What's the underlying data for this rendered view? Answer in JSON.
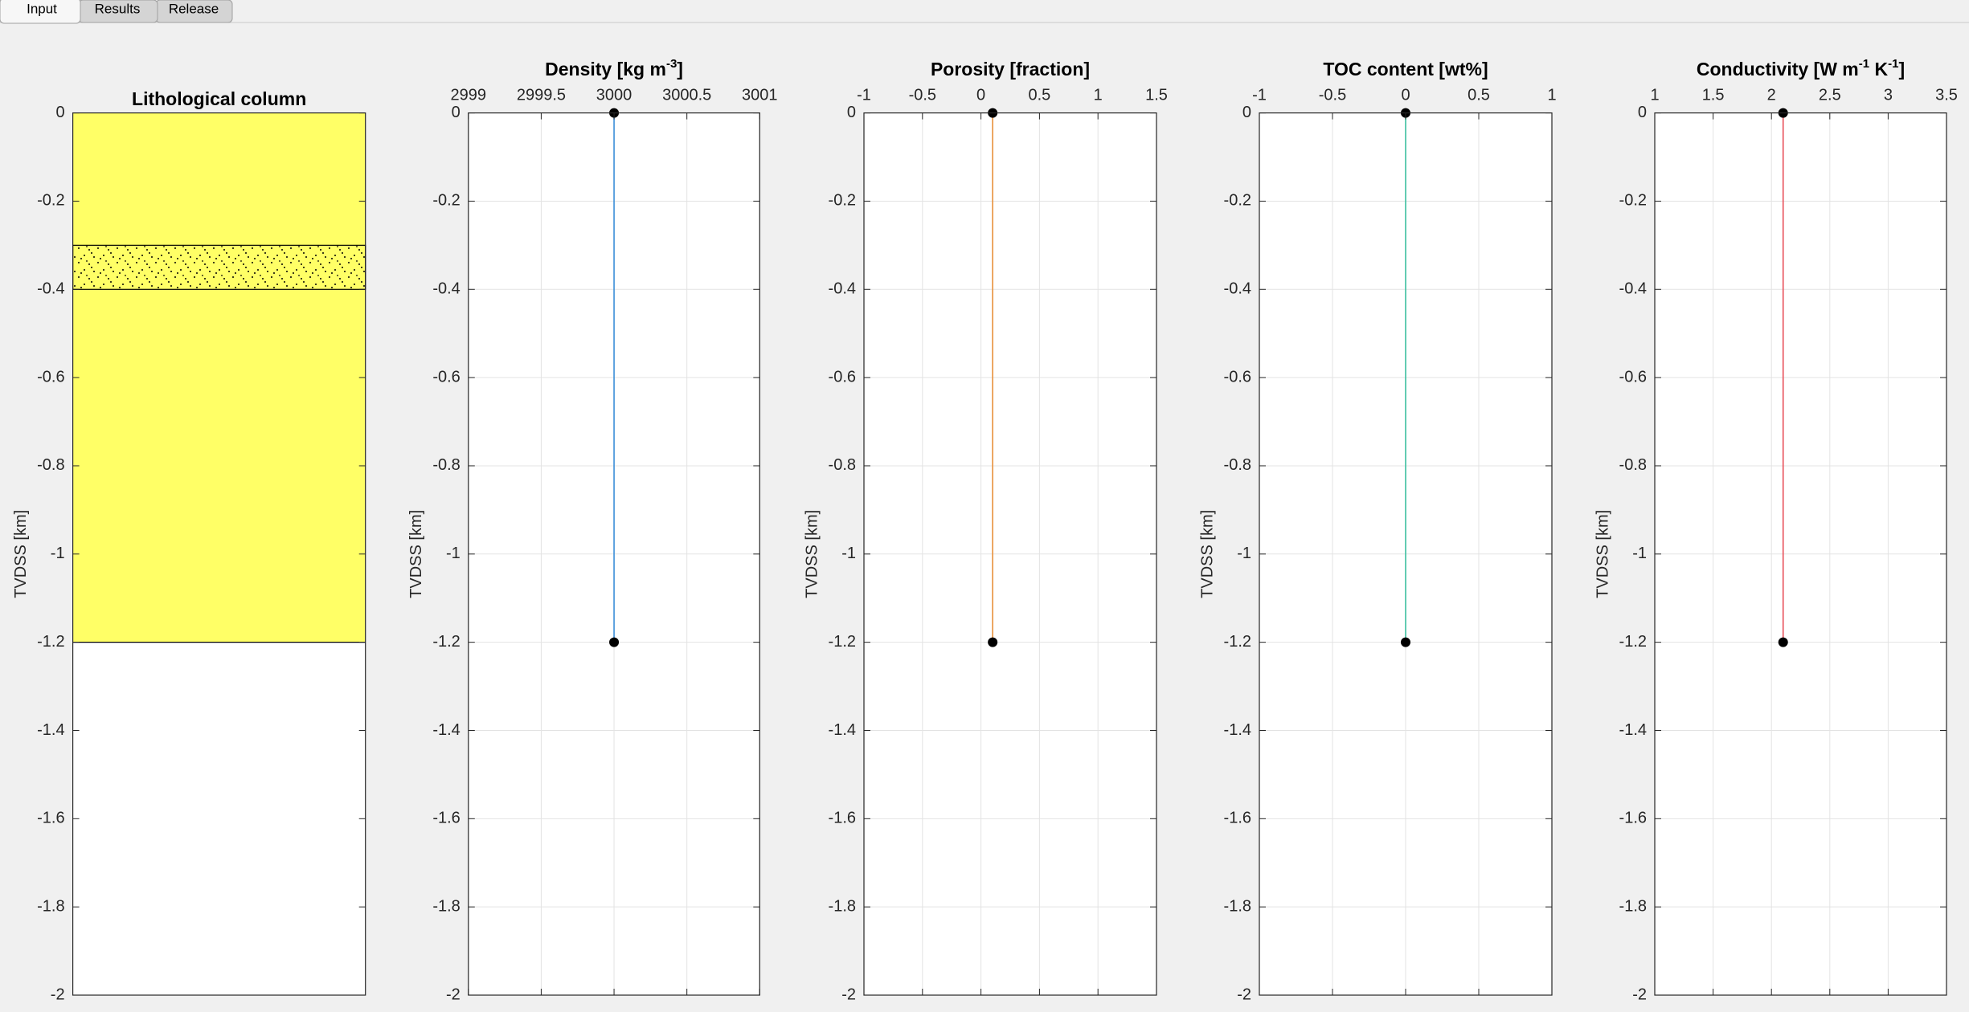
{
  "tabs": [
    "Input",
    "Results",
    "Release"
  ],
  "chart_data": [
    {
      "type": "strip",
      "title": [
        {
          "text": "Lithological column"
        }
      ],
      "ylabel": "TVDSS [km]",
      "ylim": [
        -2,
        0
      ],
      "yticks": [
        0,
        -0.2,
        -0.4,
        -0.6,
        -0.8,
        -1,
        -1.2,
        -1.4,
        -1.6,
        -1.8,
        -2
      ],
      "grid": false,
      "layers": [
        {
          "top": 0,
          "bottom": -1.2,
          "color": "#ffff66"
        },
        {
          "top": -0.3,
          "bottom": -0.4,
          "color": "#ffff66",
          "pattern": "sand"
        }
      ]
    },
    {
      "type": "line",
      "title": [
        {
          "text": "Density [kg m"
        },
        {
          "text": "-3",
          "sup": true
        },
        {
          "text": "]"
        }
      ],
      "ylabel": "TVDSS [km]",
      "xlim": [
        2999,
        3001
      ],
      "xticks": [
        2999,
        2999.5,
        3000,
        3000.5,
        3001
      ],
      "ylim": [
        -2,
        0
      ],
      "yticks": [
        0,
        -0.2,
        -0.4,
        -0.6,
        -0.8,
        -1,
        -1.2,
        -1.4,
        -1.6,
        -1.8,
        -2
      ],
      "grid": true,
      "color": "#3b8ed8",
      "x": [
        3000,
        3000
      ],
      "y": [
        0,
        -1.2
      ]
    },
    {
      "type": "line",
      "title": [
        {
          "text": "Porosity [fraction]"
        }
      ],
      "ylabel": "TVDSS [km]",
      "xlim": [
        -1,
        1.5
      ],
      "xticks": [
        -1,
        -0.5,
        0,
        0.5,
        1,
        1.5
      ],
      "ylim": [
        -2,
        0
      ],
      "yticks": [
        0,
        -0.2,
        -0.4,
        -0.6,
        -0.8,
        -1,
        -1.2,
        -1.4,
        -1.6,
        -1.8,
        -2
      ],
      "grid": true,
      "color": "#e8903a",
      "x": [
        0.1,
        0.1
      ],
      "y": [
        0,
        -1.2
      ]
    },
    {
      "type": "line",
      "title": [
        {
          "text": "TOC content [wt%]"
        }
      ],
      "ylabel": "TVDSS [km]",
      "xlim": [
        -1,
        1
      ],
      "xticks": [
        -1,
        -0.5,
        0,
        0.5,
        1
      ],
      "ylim": [
        -2,
        0
      ],
      "yticks": [
        0,
        -0.2,
        -0.4,
        -0.6,
        -0.8,
        -1,
        -1.2,
        -1.4,
        -1.6,
        -1.8,
        -2
      ],
      "grid": true,
      "color": "#3cc0a0",
      "x": [
        0,
        0
      ],
      "y": [
        0,
        -1.2
      ]
    },
    {
      "type": "line",
      "title": [
        {
          "text": "Conductivity [W m"
        },
        {
          "text": "-1",
          "sup": true
        },
        {
          "text": " K"
        },
        {
          "text": "-1",
          "sup": true
        },
        {
          "text": "]"
        }
      ],
      "ylabel": "TVDSS [km]",
      "xlim": [
        1,
        3.5
      ],
      "xticks": [
        1,
        1.5,
        2,
        2.5,
        3,
        3.5
      ],
      "ylim": [
        -2,
        0
      ],
      "yticks": [
        0,
        -0.2,
        -0.4,
        -0.6,
        -0.8,
        -1,
        -1.2,
        -1.4,
        -1.6,
        -1.8,
        -2
      ],
      "grid": true,
      "color": "#e8505a",
      "x": [
        2.1,
        2.1
      ],
      "y": [
        0,
        -1.2
      ]
    }
  ]
}
